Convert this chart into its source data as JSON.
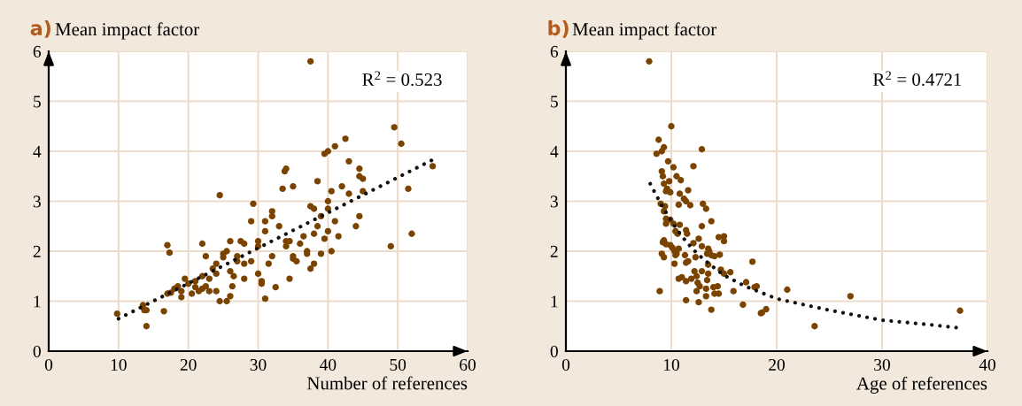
{
  "chart_data": [
    {
      "type": "scatter",
      "ylabel": "Mean impact factor",
      "xlabel": "Number of references",
      "annotations": [
        "a)",
        "R$^{2}$ = 0.523"
      ],
      "xlim": [
        0,
        60
      ],
      "ylim": [
        0,
        6
      ],
      "xticks": [
        0,
        10,
        20,
        30,
        40,
        50,
        60
      ],
      "yticks": [
        0,
        1,
        2,
        3,
        4,
        5,
        6
      ],
      "grid": true,
      "legend": false,
      "series": [
        {
          "marker": "circle",
          "color": "#7a4400",
          "x": [
            9.8,
            13.5,
            13.7,
            14,
            14,
            16.5,
            17,
            17.3,
            17,
            17.5,
            18,
            18.5,
            19,
            19,
            19.5,
            20,
            20.5,
            21,
            21,
            21.5,
            22,
            22,
            22.5,
            22,
            22.5,
            23,
            23,
            23.5,
            24,
            24,
            24.5,
            24,
            24.5,
            25,
            25,
            25.5,
            26,
            26,
            25.5,
            26,
            26.3,
            26.5,
            27,
            27,
            27.5,
            28,
            28,
            28,
            29,
            29,
            29.3,
            30,
            30,
            30,
            30.5,
            30.5,
            31,
            31,
            31,
            31.5,
            32,
            32,
            32,
            32.5,
            33,
            33.5,
            33.8,
            34,
            34,
            34,
            34.5,
            34.5,
            35,
            35,
            35,
            35.5,
            36,
            36.5,
            37,
            37,
            37.5,
            37.5,
            38,
            37.5,
            38,
            38,
            38.5,
            38.5,
            39,
            39,
            39.5,
            39.5,
            40,
            40,
            40,
            40,
            40.5,
            40.5,
            41,
            41,
            41.5,
            42,
            42.5,
            43,
            43,
            44,
            44.5,
            44.5,
            44.5,
            45,
            45,
            49,
            49.5,
            50.5,
            51.5,
            52,
            55
          ],
          "values": [
            0.75,
            0.92,
            0.82,
            0.82,
            0.5,
            0.8,
            2.12,
            1.97,
            1.15,
            1.17,
            1.25,
            1.3,
            1.2,
            1.08,
            1.45,
            1.35,
            1.15,
            1.28,
            1.4,
            1.2,
            1.5,
            1.25,
            1.3,
            2.15,
            1.9,
            1.45,
            1.2,
            1.65,
            1.55,
            1.2,
            1.0,
            1.75,
            3.12,
            1.88,
            1.95,
            2.0,
            2.2,
            1.6,
            1.0,
            1.1,
            1.3,
            1.5,
            1.8,
            1.9,
            2.2,
            2.15,
            1.45,
            1.75,
            2.6,
            1.8,
            2.95,
            2.2,
            2.1,
            1.55,
            1.35,
            1.4,
            2.6,
            2.4,
            1.05,
            1.75,
            1.9,
            2.7,
            2.8,
            1.28,
            2.5,
            3.25,
            3.6,
            3.65,
            2.2,
            2.1,
            2.2,
            1.45,
            3.3,
            1.9,
            1.85,
            1.8,
            2.15,
            2.3,
            2.0,
            1.95,
            2.9,
            1.65,
            2.85,
            5.8,
            2.35,
            1.75,
            3.4,
            2.5,
            1.95,
            2.7,
            3.95,
            2.25,
            4.0,
            3.0,
            2.85,
            2.4,
            3.2,
            2.0,
            4.1,
            2.6,
            2.3,
            3.3,
            4.25,
            3.8,
            3.15,
            2.5,
            3.65,
            3.5,
            2.7,
            3.45,
            3.2,
            2.1,
            4.48,
            4.15,
            3.25,
            2.35,
            3.7
          ]
        },
        {
          "type": "line",
          "color": "#111111",
          "line_style": "dotted",
          "x": [
            10,
            55
          ],
          "values": [
            0.65,
            3.83
          ]
        }
      ]
    },
    {
      "type": "scatter",
      "ylabel": "Mean impact factor",
      "xlabel": "Age of references",
      "annotations": [
        "b)",
        "R$^{2}$ = 0.4721"
      ],
      "xlim": [
        0,
        40
      ],
      "ylim": [
        0,
        6
      ],
      "xticks": [
        0,
        10,
        20,
        30,
        40
      ],
      "yticks": [
        0,
        1,
        2,
        3,
        4,
        5,
        6
      ],
      "grid": true,
      "legend": false,
      "series": [
        {
          "marker": "circle",
          "color": "#7a4400",
          "x": [
            7.9,
            10,
            8.8,
            9.3,
            9.1,
            8.6,
            12.9,
            9.7,
            12.1,
            10.2,
            9.1,
            9.2,
            10.5,
            10.9,
            9.3,
            9.8,
            9.5,
            9.9,
            9.6,
            10.8,
            11.2,
            11.6,
            11.4,
            11.8,
            10.7,
            13,
            13.3,
            9,
            9.4,
            9.3,
            9.5,
            9.9,
            9.5,
            10.8,
            10.2,
            13.8,
            12.9,
            10.4,
            10.6,
            11.4,
            11.5,
            12.6,
            14.5,
            15,
            15,
            9.3,
            9.2,
            9.5,
            9.9,
            10.1,
            10.3,
            10.5,
            10.4,
            10.7,
            11.3,
            9.1,
            9.3,
            10.3,
            12.1,
            12.9,
            13.5,
            13.6,
            13.4,
            13.8,
            14.1,
            14.6,
            11.6,
            11.4,
            12.3,
            13.5,
            14.7,
            15,
            15.6,
            12.2,
            12.9,
            12.4,
            12.5,
            12.7,
            13.5,
            13.4,
            13.3,
            14.0,
            14.1,
            14.5,
            13.3,
            12.6,
            12.4,
            14.4,
            10.7,
            11,
            11.4,
            11.9,
            8.9,
            11.4,
            13.8,
            15.9,
            17.1,
            17.7,
            16.8,
            18.5,
            18.1,
            17.9,
            21,
            27,
            23.6,
            18.6,
            19,
            37.4
          ],
          "values": [
            5.8,
            4.5,
            4.23,
            4.08,
            4.0,
            3.95,
            4.04,
            3.8,
            3.7,
            3.68,
            3.6,
            3.5,
            3.5,
            3.42,
            3.35,
            3.4,
            3.2,
            3.18,
            3.25,
            3.15,
            3.05,
            3.22,
            3.0,
            2.92,
            2.93,
            2.95,
            2.85,
            2.95,
            2.9,
            2.8,
            2.65,
            2.63,
            2.55,
            2.53,
            2.55,
            2.6,
            2.5,
            2.4,
            2.35,
            2.42,
            2.35,
            2.25,
            2.28,
            2.3,
            2.2,
            2.22,
            2.18,
            2.14,
            2.12,
            2.07,
            2.0,
            1.95,
            1.92,
            2.05,
            1.92,
            1.95,
            1.88,
            1.75,
            2.16,
            2.1,
            2.05,
            2.0,
            1.95,
            1.92,
            1.9,
            1.93,
            1.8,
            1.77,
            1.88,
            1.73,
            1.63,
            1.55,
            1.58,
            1.6,
            1.6,
            1.5,
            1.37,
            1.3,
            1.55,
            1.42,
            1.25,
            1.28,
            1.15,
            1.15,
            1.1,
            0.98,
            1.2,
            1.3,
            1.45,
            1.48,
            1.4,
            1.45,
            1.2,
            1.02,
            0.83,
            1.2,
            1.38,
            1.79,
            0.93,
            0.76,
            1.3,
            1.28,
            1.23,
            1.1,
            0.5,
            0.77,
            0.84,
            0.81
          ]
        },
        {
          "type": "line",
          "color": "#111111",
          "line_style": "dotted",
          "x": [
            8,
            9,
            10,
            11,
            12,
            13,
            14,
            15,
            17,
            20,
            25,
            30,
            35,
            37.5
          ],
          "values": [
            3.35,
            2.95,
            2.6,
            2.3,
            2.05,
            1.85,
            1.68,
            1.52,
            1.3,
            1.05,
            0.82,
            0.62,
            0.52,
            0.46
          ]
        }
      ]
    }
  ]
}
